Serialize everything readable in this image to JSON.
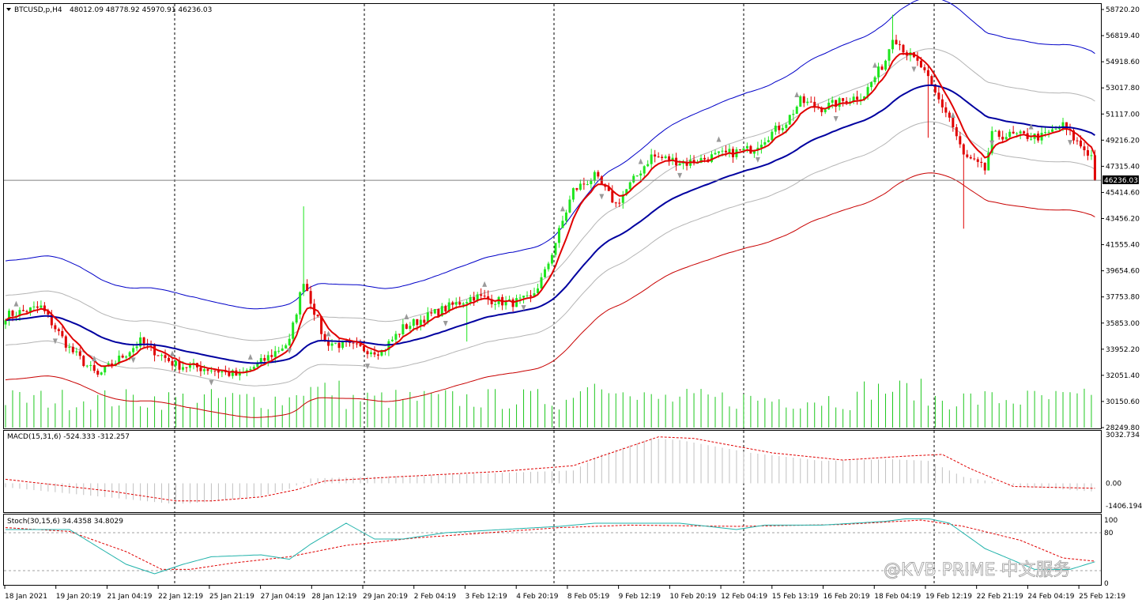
{
  "header": {
    "symbol_label": "BTCUSD,p,H4",
    "ohlc_label": "48012.09 48778.92 45970.91 46236.03",
    "last_price_label": "46236.03"
  },
  "macd_panel": {
    "label": "MACD(15,31,6) -524.333 -312.257"
  },
  "stoch_panel": {
    "label": "Stoch(30,15,6) 34.4358 34.8029"
  },
  "watermark": {
    "text": "@KVB PRIME 中文服务"
  },
  "colors": {
    "bull": "#1ee51e",
    "bear": "#e00000",
    "ma_fast": "#e00000",
    "ma_mid": "#0000a0",
    "env_upper": "#0000c8",
    "env_lower": "#c80000",
    "env_inner": "#b4b4b4",
    "volume": "#1ec81e",
    "macd_hist": "#c0c0c0",
    "macd_signal": "#e00000",
    "stoch_main": "#20b2aa",
    "stoch_signal": "#e00000",
    "price_line": "#808080"
  },
  "chart_data": [
    {
      "type": "candlestick",
      "name": "price",
      "x_tick_labels": [
        "18 Jan 2021",
        "19 Jan 20:19",
        "21 Jan 04:19",
        "22 Jan 12:19",
        "25 Jan 21:19",
        "27 Jan 04:19",
        "28 Jan 12:19",
        "29 Jan 20:19",
        "2 Feb 04:19",
        "3 Feb 12:19",
        "4 Feb 20:19",
        "8 Feb 05:19",
        "9 Feb 12:19",
        "10 Feb 20:19",
        "12 Feb 04:19",
        "15 Feb 13:19",
        "16 Feb 20:19",
        "18 Feb 04:19",
        "19 Feb 12:19",
        "22 Feb 21:19",
        "24 Feb 04:19",
        "25 Feb 12:19"
      ],
      "y_tick_labels": [
        "58720.20",
        "56819.40",
        "54918.60",
        "53017.80",
        "51117.00",
        "49216.20",
        "47315.40",
        "45414.60",
        "43456.20",
        "41555.40",
        "39654.60",
        "37753.80",
        "35853.00",
        "33952.20",
        "32051.40",
        "30150.60",
        "28249.80"
      ],
      "ylim": [
        28249.8,
        58720.2
      ],
      "last_price": 46236.03,
      "close_path": [
        [
          0,
          36400
        ],
        [
          10,
          37000
        ],
        [
          18,
          34000
        ],
        [
          26,
          32000
        ],
        [
          38,
          34500
        ],
        [
          48,
          32800
        ],
        [
          58,
          32500
        ],
        [
          66,
          32000
        ],
        [
          72,
          33000
        ],
        [
          80,
          34500
        ],
        [
          84,
          39000
        ],
        [
          90,
          34500
        ],
        [
          100,
          34000
        ],
        [
          106,
          33800
        ],
        [
          112,
          35500
        ],
        [
          122,
          36700
        ],
        [
          132,
          37800
        ],
        [
          142,
          37300
        ],
        [
          148,
          37600
        ],
        [
          152,
          39500
        ],
        [
          156,
          42500
        ],
        [
          160,
          45500
        ],
        [
          166,
          46500
        ],
        [
          172,
          44500
        ],
        [
          182,
          48000
        ],
        [
          192,
          47500
        ],
        [
          200,
          48000
        ],
        [
          210,
          48500
        ],
        [
          220,
          50500
        ],
        [
          224,
          52000
        ],
        [
          230,
          51500
        ],
        [
          236,
          52000
        ],
        [
          242,
          52500
        ],
        [
          248,
          55000
        ],
        [
          250,
          56800
        ],
        [
          254,
          55500
        ],
        [
          258,
          54500
        ],
        [
          262,
          52500
        ],
        [
          266,
          50800
        ],
        [
          270,
          48000
        ],
        [
          276,
          47000
        ],
        [
          278,
          49500
        ],
        [
          284,
          49500
        ],
        [
          292,
          49400
        ],
        [
          298,
          50200
        ],
        [
          302,
          49000
        ],
        [
          306,
          48000
        ],
        [
          307,
          46236
        ]
      ],
      "wick_spikes": [
        [
          84,
          5500
        ],
        [
          130,
          2500
        ],
        [
          260,
          4200
        ],
        [
          270,
          5000
        ],
        [
          250,
          1500
        ]
      ]
    },
    {
      "type": "bar",
      "name": "volume"
    },
    {
      "type": "bar+line",
      "name": "MACD(15,31,6)",
      "y_tick_labels": [
        "3032.734",
        "0.00",
        "-1406.194"
      ],
      "ylim": [
        -1406.194,
        3032.734
      ],
      "hist_path": [
        [
          0,
          -250
        ],
        [
          30,
          -900
        ],
        [
          48,
          -1300
        ],
        [
          58,
          -1150
        ],
        [
          72,
          -800
        ],
        [
          80,
          -350
        ],
        [
          86,
          300
        ],
        [
          110,
          450
        ],
        [
          140,
          650
        ],
        [
          160,
          800
        ],
        [
          168,
          1800
        ],
        [
          182,
          2800
        ],
        [
          190,
          2700
        ],
        [
          210,
          1900
        ],
        [
          230,
          1400
        ],
        [
          250,
          1500
        ],
        [
          260,
          1400
        ],
        [
          270,
          400
        ],
        [
          286,
          -200
        ],
        [
          307,
          -524
        ]
      ],
      "signal_path": [
        [
          0,
          250
        ],
        [
          30,
          -500
        ],
        [
          48,
          -1100
        ],
        [
          58,
          -1100
        ],
        [
          72,
          -850
        ],
        [
          82,
          -400
        ],
        [
          90,
          150
        ],
        [
          110,
          400
        ],
        [
          140,
          750
        ],
        [
          160,
          1100
        ],
        [
          172,
          2000
        ],
        [
          184,
          2900
        ],
        [
          194,
          2800
        ],
        [
          216,
          1900
        ],
        [
          236,
          1450
        ],
        [
          254,
          1700
        ],
        [
          264,
          1800
        ],
        [
          272,
          900
        ],
        [
          284,
          -200
        ],
        [
          307,
          -312
        ]
      ]
    },
    {
      "type": "line",
      "name": "Stoch(30,15,6)",
      "y_tick_labels": [
        "100",
        "80",
        "0"
      ],
      "ylim": [
        0,
        100
      ],
      "level_lines": [
        80,
        20
      ],
      "main_path": [
        [
          0,
          85
        ],
        [
          18,
          85
        ],
        [
          34,
          30
        ],
        [
          42,
          15
        ],
        [
          50,
          30
        ],
        [
          58,
          42
        ],
        [
          72,
          45
        ],
        [
          80,
          38
        ],
        [
          86,
          62
        ],
        [
          96,
          95
        ],
        [
          104,
          70
        ],
        [
          112,
          70
        ],
        [
          124,
          80
        ],
        [
          140,
          85
        ],
        [
          156,
          90
        ],
        [
          166,
          95
        ],
        [
          190,
          95
        ],
        [
          206,
          85
        ],
        [
          214,
          92
        ],
        [
          230,
          92
        ],
        [
          248,
          98
        ],
        [
          258,
          105
        ],
        [
          266,
          95
        ],
        [
          276,
          55
        ],
        [
          290,
          22
        ],
        [
          300,
          22
        ],
        [
          307,
          34
        ]
      ],
      "signal_path": [
        [
          0,
          88
        ],
        [
          18,
          82
        ],
        [
          34,
          50
        ],
        [
          44,
          22
        ],
        [
          52,
          22
        ],
        [
          64,
          32
        ],
        [
          80,
          42
        ],
        [
          96,
          60
        ],
        [
          116,
          72
        ],
        [
          136,
          80
        ],
        [
          156,
          88
        ],
        [
          176,
          92
        ],
        [
          206,
          90
        ],
        [
          236,
          93
        ],
        [
          258,
          100
        ],
        [
          270,
          90
        ],
        [
          286,
          68
        ],
        [
          298,
          40
        ],
        [
          307,
          35
        ]
      ]
    }
  ]
}
